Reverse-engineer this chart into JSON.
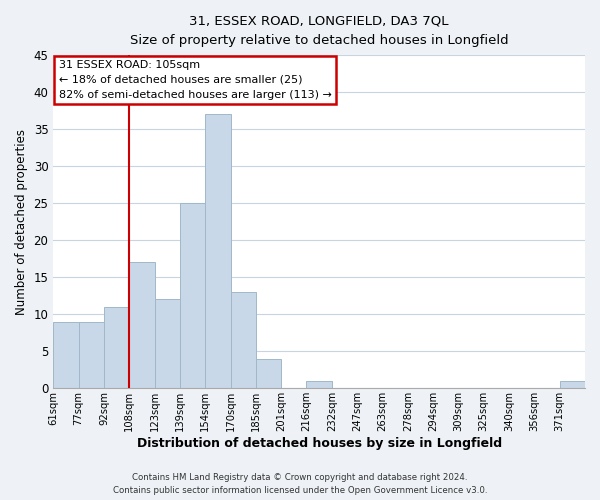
{
  "title": "31, ESSEX ROAD, LONGFIELD, DA3 7QL",
  "subtitle": "Size of property relative to detached houses in Longfield",
  "xlabel": "Distribution of detached houses by size in Longfield",
  "ylabel": "Number of detached properties",
  "footer_line1": "Contains HM Land Registry data © Crown copyright and database right 2024.",
  "footer_line2": "Contains public sector information licensed under the Open Government Licence v3.0.",
  "bin_labels": [
    "61sqm",
    "77sqm",
    "92sqm",
    "108sqm",
    "123sqm",
    "139sqm",
    "154sqm",
    "170sqm",
    "185sqm",
    "201sqm",
    "216sqm",
    "232sqm",
    "247sqm",
    "263sqm",
    "278sqm",
    "294sqm",
    "309sqm",
    "325sqm",
    "340sqm",
    "356sqm",
    "371sqm"
  ],
  "bar_heights": [
    9,
    9,
    11,
    17,
    12,
    25,
    37,
    13,
    4,
    0,
    1,
    0,
    0,
    0,
    0,
    0,
    0,
    0,
    0,
    0,
    1
  ],
  "vline_x_bin_index": 3,
  "bar_color": "#c8d8e8",
  "bar_edge_color": "#a0b8c8",
  "vline_color": "#cc0000",
  "annotation_text_line1": "31 ESSEX ROAD: 105sqm",
  "annotation_text_line2": "← 18% of detached houses are smaller (25)",
  "annotation_text_line3": "82% of semi-detached houses are larger (113) →",
  "annotation_box_color": "#ffffff",
  "annotation_box_edge": "#cc0000",
  "ylim": [
    0,
    45
  ],
  "yticks": [
    0,
    5,
    10,
    15,
    20,
    25,
    30,
    35,
    40,
    45
  ],
  "background_color": "#eef2f6",
  "plot_background": "#ffffff",
  "grid_color": "#c8d4e0"
}
